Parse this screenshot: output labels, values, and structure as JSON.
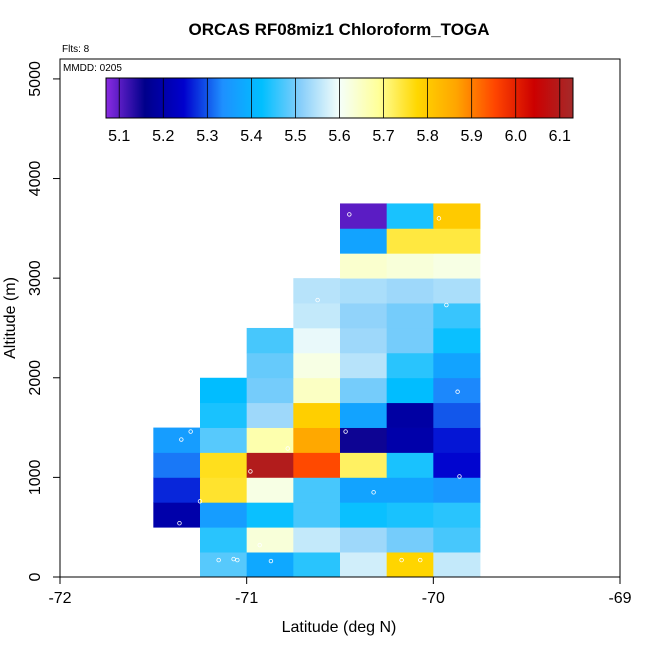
{
  "chart_data": {
    "type": "heatmap",
    "title": "ORCAS RF08miz1 Chloroform_TOGA",
    "flights_note": "Flts: 8",
    "date_note": "MMDD: 0205",
    "xlabel": "Latitude (deg N)",
    "ylabel": "Altitude (m)",
    "xlim": [
      -72,
      -69
    ],
    "ylim": [
      0,
      5200
    ],
    "x_ticks": [
      -72,
      -71,
      -70,
      -69
    ],
    "x_tick_labels": [
      "-72",
      "-71",
      "-70",
      "-69"
    ],
    "y_ticks": [
      0,
      1000,
      2000,
      3000,
      4000,
      5000
    ],
    "y_tick_labels": [
      "0",
      "1000",
      "2000",
      "3000",
      "4000",
      "5000"
    ],
    "bin_width_deg": 0.25,
    "bin_height_m": 250,
    "colorbar": {
      "min": 5.07,
      "max": 6.13,
      "ticks": [
        5.1,
        5.2,
        5.3,
        5.4,
        5.5,
        5.6,
        5.7,
        5.8,
        5.9,
        6.0,
        6.1
      ],
      "tick_labels": [
        "5.1",
        "5.2",
        "5.3",
        "5.4",
        "5.5",
        "5.6",
        "5.7",
        "5.8",
        "5.9",
        "6.0",
        "6.1"
      ],
      "colors": [
        "#8a2be2",
        "#00008b",
        "#0000cd",
        "#1e90ff",
        "#00bfff",
        "#87cefa",
        "#f5fffa",
        "#ffff99",
        "#ffd700",
        "#ffa500",
        "#ff4500",
        "#cc0000",
        "#a52a2a"
      ]
    },
    "cells": [
      {
        "lat": -71.25,
        "alt": 0,
        "value": 5.48
      },
      {
        "lat": -71.0,
        "alt": 0,
        "value": 5.38
      },
      {
        "lat": -70.75,
        "alt": 0,
        "value": 5.45
      },
      {
        "lat": -70.5,
        "alt": 0,
        "value": 5.57
      },
      {
        "lat": -70.25,
        "alt": 0,
        "value": 5.78
      },
      {
        "lat": -70.0,
        "alt": 0,
        "value": 5.56
      },
      {
        "lat": -71.25,
        "alt": 250,
        "value": 5.45
      },
      {
        "lat": -71.0,
        "alt": 250,
        "value": 5.63
      },
      {
        "lat": -70.75,
        "alt": 250,
        "value": 5.56
      },
      {
        "lat": -70.5,
        "alt": 250,
        "value": 5.53
      },
      {
        "lat": -70.25,
        "alt": 250,
        "value": 5.5
      },
      {
        "lat": -70.0,
        "alt": 250,
        "value": 5.47
      },
      {
        "lat": -71.5,
        "alt": 500,
        "value": 5.2
      },
      {
        "lat": -71.25,
        "alt": 500,
        "value": 5.36
      },
      {
        "lat": -71.0,
        "alt": 500,
        "value": 5.43
      },
      {
        "lat": -70.75,
        "alt": 500,
        "value": 5.47
      },
      {
        "lat": -70.5,
        "alt": 500,
        "value": 5.43
      },
      {
        "lat": -70.25,
        "alt": 500,
        "value": 5.44
      },
      {
        "lat": -70.0,
        "alt": 500,
        "value": 5.45
      },
      {
        "lat": -71.5,
        "alt": 750,
        "value": 5.27
      },
      {
        "lat": -71.25,
        "alt": 750,
        "value": 5.75
      },
      {
        "lat": -71.0,
        "alt": 750,
        "value": 5.62
      },
      {
        "lat": -70.75,
        "alt": 750,
        "value": 5.47
      },
      {
        "lat": -70.5,
        "alt": 750,
        "value": 5.37
      },
      {
        "lat": -70.25,
        "alt": 750,
        "value": 5.37
      },
      {
        "lat": -70.0,
        "alt": 750,
        "value": 5.35
      },
      {
        "lat": -71.5,
        "alt": 1000,
        "value": 5.32
      },
      {
        "lat": -71.25,
        "alt": 1000,
        "value": 5.76
      },
      {
        "lat": -71.0,
        "alt": 1000,
        "value": 6.1
      },
      {
        "lat": -70.75,
        "alt": 1000,
        "value": 5.95
      },
      {
        "lat": -70.5,
        "alt": 1000,
        "value": 5.72
      },
      {
        "lat": -70.25,
        "alt": 1000,
        "value": 5.44
      },
      {
        "lat": -70.0,
        "alt": 1000,
        "value": 5.25
      },
      {
        "lat": -71.5,
        "alt": 1250,
        "value": 5.36
      },
      {
        "lat": -71.25,
        "alt": 1250,
        "value": 5.48
      },
      {
        "lat": -71.0,
        "alt": 1250,
        "value": 5.67
      },
      {
        "lat": -70.75,
        "alt": 1250,
        "value": 5.86
      },
      {
        "lat": -70.5,
        "alt": 1250,
        "value": 5.15
      },
      {
        "lat": -70.25,
        "alt": 1250,
        "value": 5.2
      },
      {
        "lat": -70.0,
        "alt": 1250,
        "value": 5.26
      },
      {
        "lat": -71.25,
        "alt": 1500,
        "value": 5.44
      },
      {
        "lat": -71.0,
        "alt": 1500,
        "value": 5.53
      },
      {
        "lat": -70.75,
        "alt": 1500,
        "value": 5.79
      },
      {
        "lat": -70.5,
        "alt": 1500,
        "value": 5.37
      },
      {
        "lat": -70.25,
        "alt": 1500,
        "value": 5.19
      },
      {
        "lat": -70.0,
        "alt": 1500,
        "value": 5.3
      },
      {
        "lat": -71.25,
        "alt": 1750,
        "value": 5.42
      },
      {
        "lat": -71.0,
        "alt": 1750,
        "value": 5.5
      },
      {
        "lat": -70.75,
        "alt": 1750,
        "value": 5.65
      },
      {
        "lat": -70.5,
        "alt": 1750,
        "value": 5.5
      },
      {
        "lat": -70.25,
        "alt": 1750,
        "value": 5.42
      },
      {
        "lat": -70.0,
        "alt": 1750,
        "value": 5.33
      },
      {
        "lat": -71.0,
        "alt": 2000,
        "value": 5.49
      },
      {
        "lat": -70.75,
        "alt": 2000,
        "value": 5.62
      },
      {
        "lat": -70.5,
        "alt": 2000,
        "value": 5.55
      },
      {
        "lat": -70.25,
        "alt": 2000,
        "value": 5.45
      },
      {
        "lat": -70.0,
        "alt": 2000,
        "value": 5.37
      },
      {
        "lat": -71.0,
        "alt": 2250,
        "value": 5.47
      },
      {
        "lat": -70.75,
        "alt": 2250,
        "value": 5.59
      },
      {
        "lat": -70.5,
        "alt": 2250,
        "value": 5.53
      },
      {
        "lat": -70.25,
        "alt": 2250,
        "value": 5.5
      },
      {
        "lat": -70.0,
        "alt": 2250,
        "value": 5.43
      },
      {
        "lat": -70.75,
        "alt": 2500,
        "value": 5.56
      },
      {
        "lat": -70.5,
        "alt": 2500,
        "value": 5.52
      },
      {
        "lat": -70.25,
        "alt": 2500,
        "value": 5.5
      },
      {
        "lat": -70.0,
        "alt": 2500,
        "value": 5.46
      },
      {
        "lat": -70.75,
        "alt": 2750,
        "value": 5.55
      },
      {
        "lat": -70.5,
        "alt": 2750,
        "value": 5.54
      },
      {
        "lat": -70.25,
        "alt": 2750,
        "value": 5.53
      },
      {
        "lat": -70.0,
        "alt": 2750,
        "value": 5.54
      },
      {
        "lat": -70.5,
        "alt": 3000,
        "value": 5.64
      },
      {
        "lat": -70.25,
        "alt": 3000,
        "value": 5.63
      },
      {
        "lat": -70.0,
        "alt": 3000,
        "value": 5.62
      },
      {
        "lat": -70.5,
        "alt": 3250,
        "value": 5.37
      },
      {
        "lat": -70.25,
        "alt": 3250,
        "value": 5.74
      },
      {
        "lat": -70.0,
        "alt": 3250,
        "value": 5.74
      },
      {
        "lat": -70.5,
        "alt": 3500,
        "value": 5.1
      },
      {
        "lat": -70.25,
        "alt": 3500,
        "value": 5.44
      },
      {
        "lat": -70.0,
        "alt": 3500,
        "value": 5.8
      }
    ],
    "points": [
      {
        "lat": -71.3,
        "alt": 1460
      },
      {
        "lat": -71.35,
        "alt": 1380
      },
      {
        "lat": -71.25,
        "alt": 760
      },
      {
        "lat": -71.36,
        "alt": 540
      },
      {
        "lat": -71.15,
        "alt": 170
      },
      {
        "lat": -71.05,
        "alt": 170
      },
      {
        "lat": -71.07,
        "alt": 180
      },
      {
        "lat": -70.93,
        "alt": 320
      },
      {
        "lat": -70.87,
        "alt": 160
      },
      {
        "lat": -70.98,
        "alt": 1060
      },
      {
        "lat": -70.78,
        "alt": 1290
      },
      {
        "lat": -70.62,
        "alt": 2780
      },
      {
        "lat": -70.47,
        "alt": 1460
      },
      {
        "lat": -70.32,
        "alt": 850
      },
      {
        "lat": -70.17,
        "alt": 170
      },
      {
        "lat": -70.07,
        "alt": 170
      },
      {
        "lat": -69.87,
        "alt": 1860
      },
      {
        "lat": -69.86,
        "alt": 1010
      },
      {
        "lat": -69.93,
        "alt": 2730
      },
      {
        "lat": -70.45,
        "alt": 3640
      },
      {
        "lat": -69.97,
        "alt": 3600
      }
    ]
  }
}
